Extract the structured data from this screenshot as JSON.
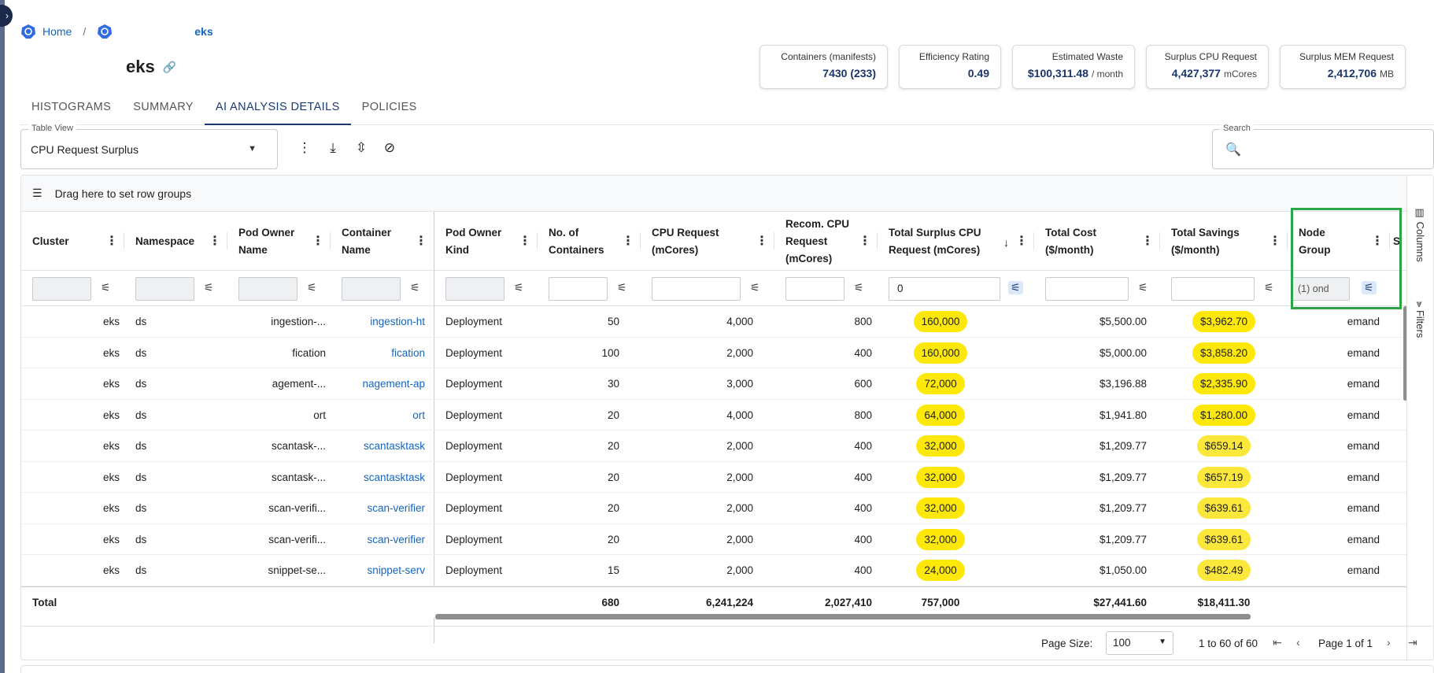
{
  "breadcrumb": {
    "home": "Home",
    "sep": "/",
    "cluster": "eks"
  },
  "page": {
    "title": "eks"
  },
  "kpis": [
    {
      "label": "Containers (manifests)",
      "value": "7430 (233)",
      "unit": ""
    },
    {
      "label": "Efficiency Rating",
      "value": "0.49",
      "unit": ""
    },
    {
      "label": "Estimated Waste",
      "value": "$100,311.48",
      "unit": "/ month"
    },
    {
      "label": "Surplus CPU Request",
      "value": "4,427,377",
      "unit": "mCores"
    },
    {
      "label": "Surplus MEM Request",
      "value": "2,412,706",
      "unit": "MB"
    }
  ],
  "tabs": [
    "HISTOGRAMS",
    "SUMMARY",
    "AI ANALYSIS DETAILS",
    "POLICIES"
  ],
  "active_tab": "AI ANALYSIS DETAILS",
  "table_view": {
    "label": "Table View",
    "value": "CPU Request Surplus"
  },
  "search": {
    "label": "Search",
    "placeholder": ""
  },
  "group_bar": {
    "text": "Drag here to set row groups"
  },
  "columns": {
    "cluster": "Cluster",
    "namespace": "Namespace",
    "pod_owner_name": "Pod Owner Name",
    "container_name": "Container Name",
    "pod_owner_kind": "Pod Owner Kind",
    "containers": "No. of Containers",
    "cpu_request": "CPU Request (mCores)",
    "recom_cpu": "Recom. CPU Request (mCores)",
    "surplus_cpu": "Total Surplus CPU Request (mCores)",
    "total_cost": "Total Cost ($/month)",
    "total_savings": "Total Savings ($/month)",
    "node_group": "Node Group",
    "next_col_partial": "S"
  },
  "filters": {
    "surplus_cpu": "0",
    "node_group": "(1) ond"
  },
  "rows": [
    {
      "cluster": "eks",
      "namespace": "ds",
      "pod_owner": "ingestion-...",
      "container": "ingestion-ht",
      "kind": "Deployment",
      "containers": "50",
      "cpu": "4,000",
      "recom": "800",
      "surplus": "160,000",
      "cost": "$5,500.00",
      "savings": "$3,962.70",
      "node_group": "emand"
    },
    {
      "cluster": "eks",
      "namespace": "ds",
      "pod_owner": "fication",
      "container": "fication",
      "kind": "Deployment",
      "containers": "100",
      "cpu": "2,000",
      "recom": "400",
      "surplus": "160,000",
      "cost": "$5,000.00",
      "savings": "$3,858.20",
      "node_group": "emand"
    },
    {
      "cluster": "eks",
      "namespace": "ds",
      "pod_owner": "agement-...",
      "container": "nagement-ap",
      "kind": "Deployment",
      "containers": "30",
      "cpu": "3,000",
      "recom": "600",
      "surplus": "72,000",
      "cost": "$3,196.88",
      "savings": "$2,335.90",
      "node_group": "emand"
    },
    {
      "cluster": "eks",
      "namespace": "ds",
      "pod_owner": "ort",
      "container": "ort",
      "kind": "Deployment",
      "containers": "20",
      "cpu": "4,000",
      "recom": "800",
      "surplus": "64,000",
      "cost": "$1,941.80",
      "savings": "$1,280.00",
      "node_group": "emand"
    },
    {
      "cluster": "eks",
      "namespace": "ds",
      "pod_owner": "scantask-...",
      "container": "scantasktask",
      "kind": "Deployment",
      "containers": "20",
      "cpu": "2,000",
      "recom": "400",
      "surplus": "32,000",
      "cost": "$1,209.77",
      "savings": "$659.14",
      "node_group": "emand"
    },
    {
      "cluster": "eks",
      "namespace": "ds",
      "pod_owner": "scantask-...",
      "container": "scantasktask",
      "kind": "Deployment",
      "containers": "20",
      "cpu": "2,000",
      "recom": "400",
      "surplus": "32,000",
      "cost": "$1,209.77",
      "savings": "$657.19",
      "node_group": "emand"
    },
    {
      "cluster": "eks",
      "namespace": "ds",
      "pod_owner": "scan-verifi...",
      "container": "scan-verifier",
      "kind": "Deployment",
      "containers": "20",
      "cpu": "2,000",
      "recom": "400",
      "surplus": "32,000",
      "cost": "$1,209.77",
      "savings": "$639.61",
      "node_group": "emand"
    },
    {
      "cluster": "eks",
      "namespace": "ds",
      "pod_owner": "scan-verifi...",
      "container": "scan-verifier",
      "kind": "Deployment",
      "containers": "20",
      "cpu": "2,000",
      "recom": "400",
      "surplus": "32,000",
      "cost": "$1,209.77",
      "savings": "$639.61",
      "node_group": "emand"
    },
    {
      "cluster": "eks",
      "namespace": "ds",
      "pod_owner": "snippet-se...",
      "container": "snippet-serv",
      "kind": "Deployment",
      "containers": "15",
      "cpu": "2,000",
      "recom": "400",
      "surplus": "24,000",
      "cost": "$1,050.00",
      "savings": "$482.49",
      "node_group": "emand"
    }
  ],
  "totals": {
    "label": "Total",
    "containers": "680",
    "cpu": "6,241,224",
    "recom": "2,027,410",
    "surplus": "757,000",
    "cost": "$27,441.60",
    "savings": "$18,411.30"
  },
  "side_panel": {
    "columns": "Columns",
    "filters": "Filters"
  },
  "pager": {
    "page_size_label": "Page Size:",
    "page_size": "100",
    "range": "1 to 60 of 60",
    "page": "Page 1 of 1"
  },
  "colors": {
    "accent": "#1a3a73",
    "pill": "#fde80a",
    "link": "#1565c0",
    "highlight": "#2aa646"
  },
  "icons": [
    "menu-dots-icon",
    "download-icon",
    "collapse-icon",
    "clear-filter-icon",
    "search-icon",
    "filter-icon",
    "sort-desc-icon",
    "row-group-icon",
    "link-icon",
    "kubernetes-icon"
  ]
}
